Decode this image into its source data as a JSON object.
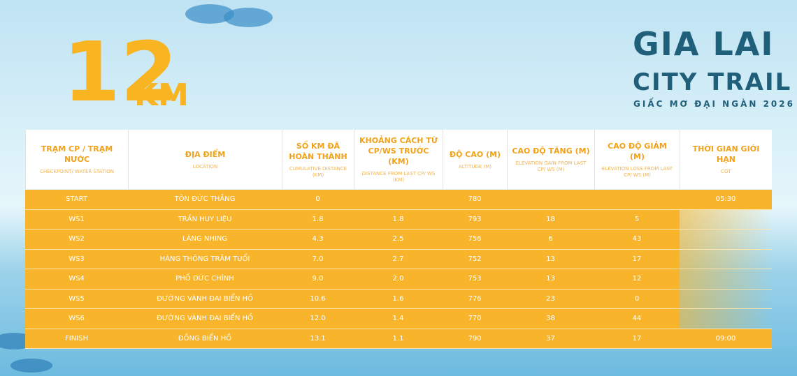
{
  "distance": {
    "number": "12",
    "unit": "KM"
  },
  "logo": {
    "line1": "GIA LAI",
    "line2": "CITY TRAIL",
    "tagline": "GIẤC MƠ ĐẠI NGÀN 2026"
  },
  "table": {
    "headers": [
      {
        "title": "TRẠM CP / TRẠM NƯỚC",
        "subtitle": "CHECKPOINT/ WATER STATION"
      },
      {
        "title": "ĐỊA ĐIỂM",
        "subtitle": "LOCATION"
      },
      {
        "title": "SỐ KM ĐÃ HOÀN THÀNH",
        "subtitle": "CUMULATIVE DISTANCE (KM)"
      },
      {
        "title": "KHOẢNG CÁCH TỪ CP/WS TRƯỚC (KM)",
        "subtitle": "DISTANCE FROM LAST CP/ WS (KM)"
      },
      {
        "title": "ĐỘ CAO (M)",
        "subtitle": "ALTITUDE (M)"
      },
      {
        "title": "CAO ĐỘ TĂNG (M)",
        "subtitle": "ELEVATION GAIN FROM LAST CP/ WS (M)"
      },
      {
        "title": "CAO ĐỘ GIẢM (M)",
        "subtitle": "ELEVATION LOSS FROM LAST CP/ WS (M)"
      },
      {
        "title": "THỜI GIAN GIỚI HẠN",
        "subtitle": "COT"
      }
    ],
    "rows": [
      [
        "START",
        "TÔN ĐỨC THẮNG",
        "0",
        null,
        "780",
        null,
        null,
        "05:30"
      ],
      [
        "WS1",
        "TRẦN HUY LIỆU",
        "1.8",
        "1.8",
        "793",
        "18",
        "5",
        null
      ],
      [
        "WS2",
        "LÀNG NHING",
        "4.3",
        "2.5",
        "756",
        "6",
        "43",
        null
      ],
      [
        "WS3",
        "HÀNG THÔNG TRĂM TUỔI",
        "7.0",
        "2.7",
        "752",
        "13",
        "17",
        null
      ],
      [
        "WS4",
        "PHỐ ĐỨC CHÍNH",
        "9.0",
        "2.0",
        "753",
        "13",
        "12",
        null
      ],
      [
        "WS5",
        "ĐƯỜNG VÀNH ĐAI BIỂN HỒ",
        "10.6",
        "1.6",
        "776",
        "23",
        "0",
        null
      ],
      [
        "WS6",
        "ĐƯỜNG VÀNH ĐAI BIỂN HỒ",
        "12.0",
        "1.4",
        "770",
        "38",
        "44",
        null
      ],
      [
        "FINISH",
        "ĐỒNG BIỂN HỒ",
        "13.1",
        "1.1",
        "790",
        "37",
        "17",
        "09:00"
      ]
    ]
  }
}
